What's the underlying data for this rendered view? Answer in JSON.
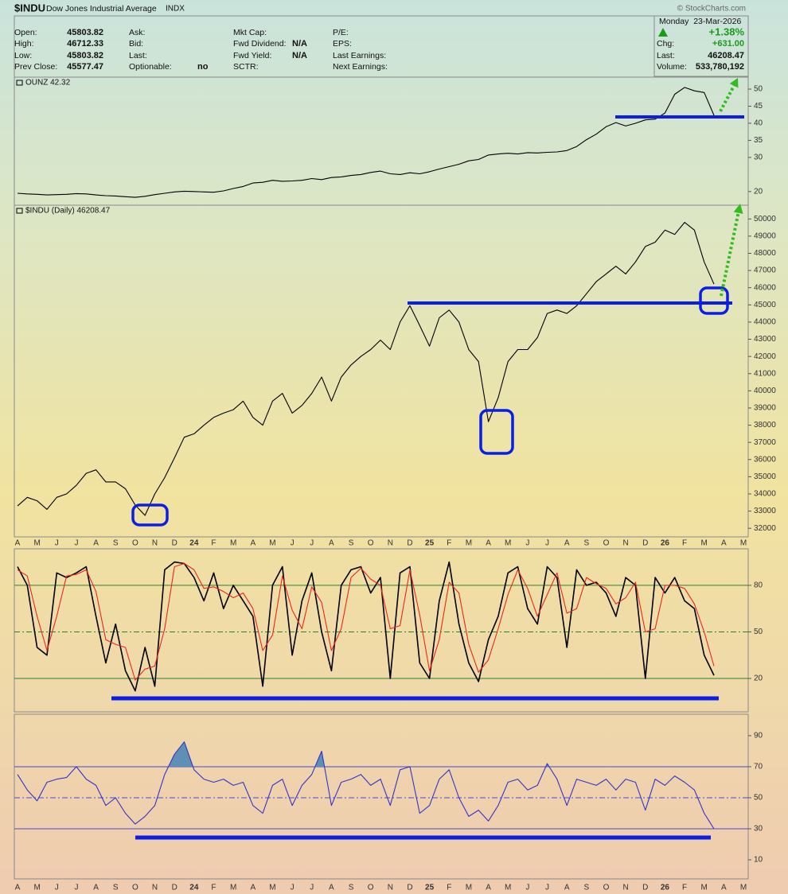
{
  "header": {
    "symbol": "$INDU",
    "name": "Dow Jones Industrial Average",
    "exchange": "INDX",
    "credit": "© StockCharts.com",
    "date": "Monday  23-Mar-2026",
    "change_percent": "+1.38%"
  },
  "quote": {
    "columns": [
      [
        {
          "label": "Open:",
          "value": "45803.82"
        },
        {
          "label": "High:",
          "value": "46712.33"
        },
        {
          "label": "Low:",
          "value": "45803.82"
        },
        {
          "label": "Prev Close:",
          "value": "45577.47"
        }
      ],
      [
        {
          "label": "Ask:"
        },
        {
          "label": "Bid:"
        },
        {
          "label": "Last:"
        },
        {
          "label": "Optionable:",
          "value": "no"
        }
      ],
      [
        {
          "label": "Mkt Cap:"
        },
        {
          "label": "Fwd Dividend:",
          "value": "N/A"
        },
        {
          "label": "Fwd Yield:",
          "value": "N/A"
        },
        {
          "label": "SCTR:"
        }
      ],
      [
        {
          "label": "P/E:"
        },
        {
          "label": "EPS:"
        },
        {
          "label": "Last Earnings:"
        },
        {
          "label": "Next Earnings:"
        }
      ],
      [
        {
          "label": "Chg:",
          "value": "+631.00"
        },
        {
          "label": "Last:",
          "value": "46208.47"
        },
        {
          "label": "Volume:",
          "value": "533,780,192"
        }
      ]
    ]
  },
  "chart_data": [
    {
      "type": "line",
      "ylim": [
        16,
        53.5
      ],
      "yticks": [
        20,
        30,
        35,
        40,
        45,
        50
      ],
      "series": [
        {
          "name": "OUNZ 42.32",
          "color": "#000000",
          "values": [
            19.5,
            19.3,
            19.2,
            19.0,
            19.1,
            19.2,
            19.4,
            19.3,
            19.0,
            18.8,
            18.7,
            18.5,
            18.3,
            18.6,
            19.1,
            19.5,
            19.9,
            20.1,
            20.0,
            19.9,
            19.8,
            20.2,
            20.9,
            21.5,
            22.5,
            22.7,
            23.3,
            23.0,
            23.1,
            23.3,
            23.8,
            23.5,
            24.1,
            24.3,
            24.7,
            25.0,
            25.6,
            26.0,
            25.2,
            25.0,
            25.5,
            25.2,
            25.8,
            26.6,
            27.3,
            28.0,
            29.0,
            29.4,
            30.7,
            31.0,
            31.2,
            31.0,
            31.4,
            31.3,
            31.5,
            31.6,
            32.0,
            33.2,
            35.2,
            36.8,
            39.0,
            40.2,
            39.2,
            40.0,
            41.0,
            41.2,
            43.0,
            48.5,
            50.5,
            49.5,
            49.0,
            42.32,
            null,
            null,
            null,
            null
          ]
        }
      ]
    },
    {
      "type": "line",
      "ylim": [
        31500,
        50800
      ],
      "yticks": [
        32000,
        33000,
        34000,
        35000,
        36000,
        37000,
        38000,
        39000,
        40000,
        41000,
        42000,
        43000,
        44000,
        45000,
        46000,
        47000,
        48000,
        49000,
        50000
      ],
      "categories": [
        "A",
        null,
        "M",
        null,
        "J",
        null,
        "J",
        null,
        "A",
        null,
        "S",
        null,
        "O",
        null,
        "N",
        null,
        "D",
        null,
        "24",
        null,
        "F",
        null,
        "M",
        null,
        "A",
        null,
        "M",
        null,
        "J",
        null,
        "J",
        null,
        "A",
        null,
        "S",
        null,
        "O",
        null,
        "N",
        null,
        "D",
        null,
        "25",
        null,
        "F",
        null,
        "M",
        null,
        "A",
        null,
        "M",
        null,
        "J",
        null,
        "J",
        null,
        "A",
        null,
        "S",
        null,
        "O",
        null,
        "N",
        null,
        "D",
        null,
        "26",
        null,
        "F",
        null,
        "M",
        null,
        "A",
        null,
        "M",
        null
      ],
      "series": [
        {
          "name": "$INDU (Daily) 46208.47",
          "color": "#000000",
          "values": [
            33300,
            33800,
            33600,
            33100,
            33800,
            34000,
            34500,
            35200,
            35400,
            34700,
            34700,
            34300,
            33350,
            32750,
            34000,
            34950,
            36100,
            37300,
            37500,
            38000,
            38450,
            38700,
            38900,
            39400,
            38450,
            38000,
            39400,
            39850,
            38700,
            39150,
            39850,
            40800,
            39400,
            40800,
            41500,
            42000,
            42400,
            42950,
            42400,
            44000,
            44950,
            43800,
            42600,
            44250,
            44700,
            44000,
            42400,
            41700,
            38200,
            39600,
            41700,
            42400,
            42400,
            43100,
            44500,
            44700,
            44500,
            44950,
            45650,
            46350,
            46800,
            47250,
            46800,
            47500,
            48400,
            48650,
            49350,
            49100,
            49800,
            49350,
            47500,
            46208.47,
            null,
            null,
            null,
            null
          ]
        }
      ]
    },
    {
      "type": "line",
      "ylim": [
        -1.5,
        103.5
      ],
      "yticks": [
        20,
        50,
        80
      ],
      "hlines": [
        20,
        50,
        80
      ],
      "hline_dashed": [
        50
      ],
      "hline_color": "#2f7f2f",
      "series": [
        {
          "color": "#000000",
          "values": [
            92,
            80,
            40,
            35,
            88,
            85,
            88,
            92,
            60,
            30,
            55,
            25,
            12,
            40,
            15,
            90,
            95,
            94,
            85,
            70,
            88,
            65,
            80,
            70,
            60,
            15,
            80,
            92,
            35,
            70,
            88,
            50,
            25,
            80,
            90,
            92,
            75,
            85,
            20,
            88,
            92,
            30,
            20,
            70,
            95,
            55,
            30,
            18,
            45,
            60,
            88,
            92,
            65,
            55,
            92,
            85,
            40,
            90,
            80,
            82,
            75,
            60,
            85,
            80,
            20,
            85,
            75,
            85,
            70,
            65,
            35,
            22,
            null,
            null,
            null,
            null
          ]
        },
        {
          "color": "#e8281e",
          "values": [
            90,
            86,
            60,
            38,
            60,
            86,
            87,
            90,
            76,
            45,
            42,
            40,
            19,
            26,
            28,
            52,
            92,
            94,
            90,
            78,
            79,
            76,
            72,
            75,
            65,
            38,
            48,
            86,
            64,
            52,
            79,
            69,
            38,
            52,
            85,
            91,
            84,
            80,
            52,
            54,
            90,
            61,
            25,
            45,
            82,
            75,
            42,
            24,
            32,
            52,
            74,
            90,
            78,
            60,
            74,
            88,
            62,
            65,
            85,
            81,
            78,
            68,
            72,
            82,
            50,
            52,
            80,
            80,
            78,
            68,
            50,
            28,
            null,
            null,
            null,
            null
          ]
        }
      ]
    },
    {
      "type": "line",
      "ylim": [
        -2.3,
        103.8
      ],
      "yticks": [
        10,
        30,
        50,
        70,
        90
      ],
      "hlines": [
        30,
        50,
        70
      ],
      "hline_dashed": [
        50
      ],
      "hline_color": "#4a4ad0",
      "fill_above": 70,
      "fill_color": "#5f8fb5",
      "categories": [
        "A",
        null,
        "M",
        null,
        "J",
        null,
        "J",
        null,
        "A",
        null,
        "S",
        null,
        "O",
        null,
        "N",
        null,
        "D",
        null,
        "24",
        null,
        "F",
        null,
        "M",
        null,
        "A",
        null,
        "M",
        null,
        "J",
        null,
        "J",
        null,
        "A",
        null,
        "S",
        null,
        "O",
        null,
        "N",
        null,
        "D",
        null,
        "25",
        null,
        "F",
        null,
        "M",
        null,
        "A",
        null,
        "M",
        null,
        "J",
        null,
        "J",
        null,
        "A",
        null,
        "S",
        null,
        "O",
        null,
        "N",
        null,
        "D",
        null,
        "26",
        null,
        "F",
        null,
        "M",
        null,
        "A",
        null,
        "M",
        null
      ],
      "series": [
        {
          "color": "#3434c8",
          "values": [
            65,
            55,
            48,
            60,
            62,
            63,
            70,
            62,
            58,
            45,
            50,
            40,
            33,
            38,
            45,
            65,
            78,
            86,
            68,
            62,
            60,
            62,
            58,
            60,
            45,
            40,
            58,
            62,
            45,
            58,
            65,
            80,
            45,
            60,
            62,
            65,
            58,
            62,
            45,
            68,
            70,
            40,
            45,
            62,
            68,
            50,
            38,
            42,
            35,
            45,
            60,
            62,
            55,
            58,
            72,
            62,
            45,
            62,
            60,
            58,
            62,
            55,
            62,
            60,
            42,
            62,
            58,
            64,
            60,
            55,
            40,
            30,
            null,
            null,
            null,
            null
          ]
        }
      ]
    }
  ]
}
